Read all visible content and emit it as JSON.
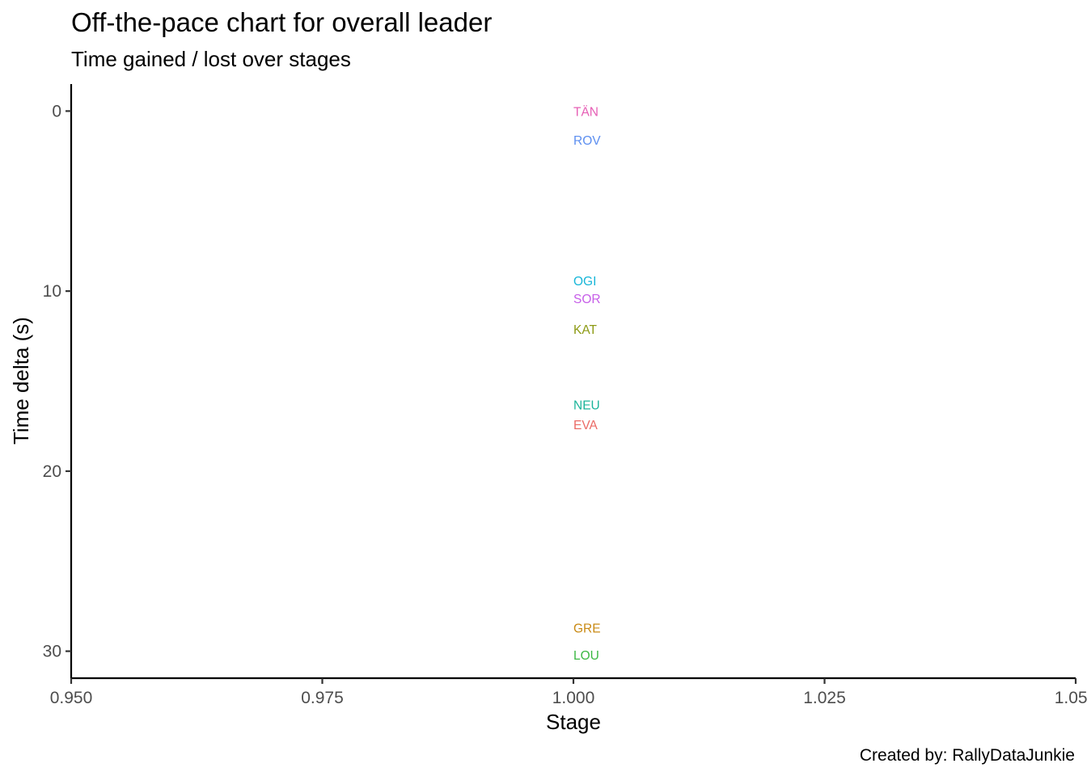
{
  "chart_data": {
    "type": "scatter",
    "title": "Off-the-pace chart for overall leader",
    "subtitle": "Time gained / lost over stages",
    "xlabel": "Stage",
    "ylabel": "Time delta (s)",
    "caption": "Created by: RallyDataJunkie",
    "xlim": [
      0.95,
      1.05
    ],
    "ylim": [
      -1.5,
      31.5
    ],
    "y_reversed": true,
    "x_ticks": [
      "0.950",
      "0.975",
      "1.000",
      "1.025",
      "1.050"
    ],
    "y_ticks": [
      "0",
      "10",
      "20",
      "30"
    ],
    "grid": false,
    "legend": "none",
    "series": [
      {
        "label": "TÄN",
        "x": 1.0,
        "y": 0.0,
        "color": "#E65FB5"
      },
      {
        "label": "ROV",
        "x": 1.0,
        "y": 1.6,
        "color": "#5D8FF0"
      },
      {
        "label": "OGI",
        "x": 1.0,
        "y": 9.4,
        "color": "#17B6D8"
      },
      {
        "label": "SOR",
        "x": 1.0,
        "y": 10.4,
        "color": "#C65EE8"
      },
      {
        "label": "KAT",
        "x": 1.0,
        "y": 12.1,
        "color": "#8C9A13"
      },
      {
        "label": "NEU",
        "x": 1.0,
        "y": 16.3,
        "color": "#1BB49A"
      },
      {
        "label": "EVA",
        "x": 1.0,
        "y": 17.4,
        "color": "#EB6A65"
      },
      {
        "label": "GRE",
        "x": 1.0,
        "y": 28.7,
        "color": "#C98A14"
      },
      {
        "label": "LOU",
        "x": 1.0,
        "y": 30.2,
        "color": "#3CB843"
      }
    ]
  }
}
